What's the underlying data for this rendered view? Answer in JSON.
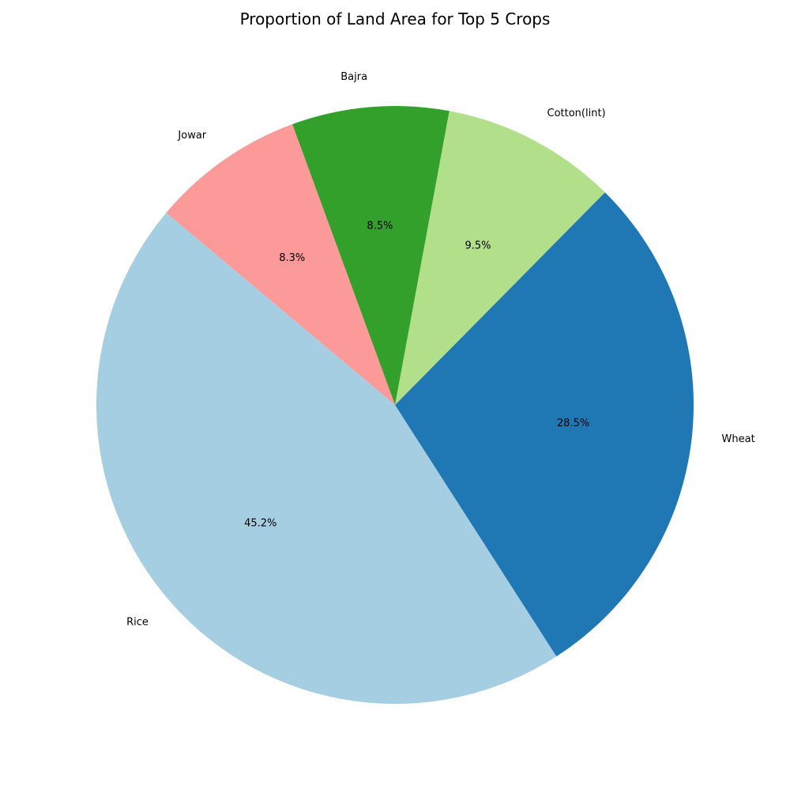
{
  "chart_data": {
    "type": "pie",
    "title": "Proportion of Land Area for Top 5 Crops",
    "start_angle_deg": 140,
    "direction": "counterclockwise",
    "slices": [
      {
        "label": "Rice",
        "value": 45.2,
        "pct_label": "45.2%",
        "color": "#a6cee3"
      },
      {
        "label": "Wheat",
        "value": 28.5,
        "pct_label": "28.5%",
        "color": "#1f78b4"
      },
      {
        "label": "Cotton(lint)",
        "value": 9.5,
        "pct_label": "9.5%",
        "color": "#b2df8a"
      },
      {
        "label": "Bajra",
        "value": 8.5,
        "pct_label": "8.5%",
        "color": "#33a02c"
      },
      {
        "label": "Jowar",
        "value": 8.3,
        "pct_label": "8.3%",
        "color": "#fb9a99"
      }
    ]
  }
}
